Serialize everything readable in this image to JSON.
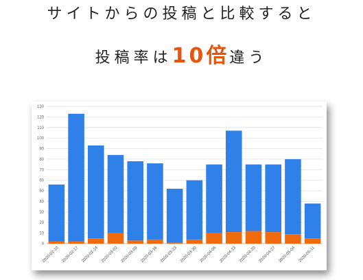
{
  "header": {
    "line1": "サイトからの投稿と比較すると",
    "line2_prefix": "投稿率は",
    "line2_highlight": "10倍",
    "line2_suffix": "違う",
    "highlight_color": "#e8540c"
  },
  "chart_data": {
    "type": "bar",
    "stacked": true,
    "categories": [
      "2020-02-10",
      "2020-02-17",
      "2020-02-24",
      "2020-03-02",
      "2020-03-09",
      "2020-03-16",
      "2020-03-23",
      "2020-03-30",
      "2020-04-06",
      "2020-04-13",
      "2020-04-20",
      "2020-04-27",
      "2020-05-04",
      "2020-05-11"
    ],
    "series": [
      {
        "color": "#2f80e8",
        "values": [
          54,
          121,
          88,
          74,
          75,
          72,
          51,
          56,
          65,
          96,
          63,
          64,
          71,
          33
        ]
      },
      {
        "color": "#f06a0e",
        "values": [
          2,
          2,
          5,
          10,
          3,
          4,
          1,
          4,
          10,
          11,
          12,
          11,
          9,
          5
        ]
      }
    ],
    "ylim": [
      0,
      130
    ],
    "yticks": [
      0,
      10,
      20,
      30,
      40,
      50,
      60,
      70,
      80,
      90,
      100,
      110,
      120,
      130
    ],
    "grid": true
  }
}
